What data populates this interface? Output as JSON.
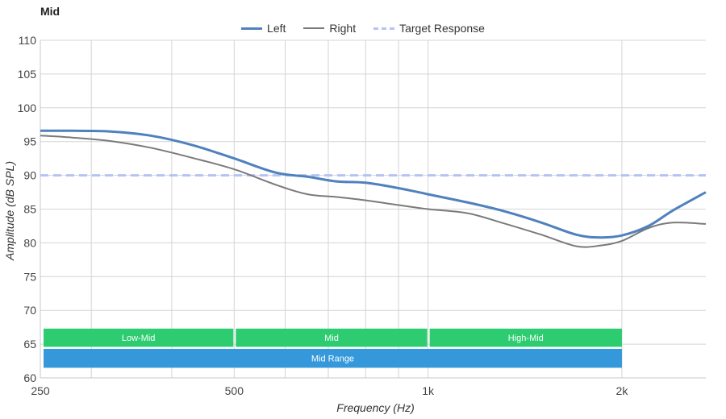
{
  "chart_data": {
    "type": "line",
    "title": "Mid",
    "xlabel": "Frequency (Hz)",
    "ylabel": "Amplitude (dB SPL)",
    "xscale": "log",
    "xlim": [
      250,
      2700
    ],
    "ylim": [
      60,
      110
    ],
    "x_ticks": [
      250,
      500,
      1000,
      2000
    ],
    "x_tick_labels": [
      "250",
      "500",
      "1k",
      "2k"
    ],
    "y_ticks": [
      60,
      65,
      70,
      75,
      80,
      85,
      90,
      95,
      100,
      105,
      110
    ],
    "legend_position": "top-center",
    "grid": true,
    "colors": {
      "left": "#4f81bd",
      "right": "#7a7a7a",
      "target": "#b3c3f5",
      "band_small": "#2ecc71",
      "band_large": "#3498db"
    },
    "series": [
      {
        "name": "Left",
        "style": "solid-thick",
        "x": [
          250,
          280,
          320,
          370,
          430,
          500,
          580,
          650,
          720,
          800,
          900,
          1000,
          1150,
          1300,
          1500,
          1700,
          1850,
          2000,
          2200,
          2400,
          2700
        ],
        "y": [
          96.6,
          96.6,
          96.5,
          95.9,
          94.5,
          92.5,
          90.4,
          89.8,
          89.1,
          88.9,
          88.1,
          87.2,
          86.0,
          84.8,
          83.0,
          81.2,
          80.8,
          81.1,
          82.5,
          84.8,
          87.5
        ]
      },
      {
        "name": "Right",
        "style": "solid-thin",
        "x": [
          250,
          280,
          320,
          370,
          430,
          500,
          580,
          650,
          720,
          800,
          900,
          1000,
          1150,
          1300,
          1500,
          1700,
          1850,
          2000,
          2200,
          2400,
          2700
        ],
        "y": [
          95.9,
          95.6,
          95.1,
          94.1,
          92.6,
          90.9,
          88.6,
          87.2,
          86.8,
          86.3,
          85.6,
          85.0,
          84.4,
          83.0,
          81.2,
          79.5,
          79.6,
          80.3,
          82.2,
          83.0,
          82.8
        ]
      },
      {
        "name": "Target Response",
        "style": "dashed",
        "x": [
          250,
          2700
        ],
        "y": [
          90,
          90
        ]
      }
    ],
    "bands": [
      {
        "label": "Low-Mid",
        "x0": 250,
        "x1": 500,
        "y0": 67.3,
        "y1": 64.6
      },
      {
        "label": "Mid",
        "x0": 500,
        "x1": 1000,
        "y0": 67.3,
        "y1": 64.6
      },
      {
        "label": "High-Mid",
        "x0": 1000,
        "x1": 2000,
        "y0": 67.3,
        "y1": 64.6
      },
      {
        "label": "Mid Range",
        "x0": 250,
        "x1": 2000,
        "y0": 64.3,
        "y1": 61.5
      }
    ]
  }
}
